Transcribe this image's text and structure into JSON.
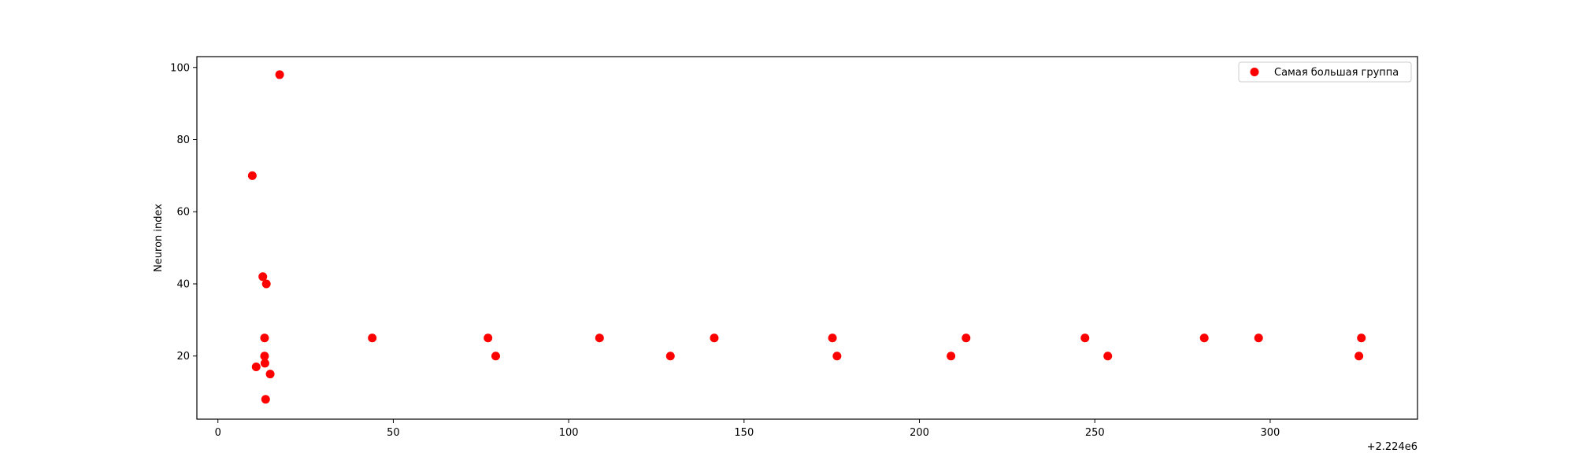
{
  "chart_data": {
    "type": "scatter",
    "title": "",
    "xlabel": "",
    "ylabel": "Neuron index",
    "x_offset_label": "+2.224e6",
    "xlim": [
      -6,
      342
    ],
    "ylim": [
      2.5,
      103
    ],
    "x_ticks": [
      {
        "value": 0,
        "label": "0"
      },
      {
        "value": 50,
        "label": "50"
      },
      {
        "value": 100,
        "label": "100"
      },
      {
        "value": 150,
        "label": "150"
      },
      {
        "value": 200,
        "label": "200"
      },
      {
        "value": 250,
        "label": "250"
      },
      {
        "value": 300,
        "label": "300"
      }
    ],
    "y_ticks": [
      {
        "value": 20,
        "label": "20"
      },
      {
        "value": 40,
        "label": "40"
      },
      {
        "value": 60,
        "label": "60"
      },
      {
        "value": 80,
        "label": "80"
      },
      {
        "value": 100,
        "label": "100"
      }
    ],
    "grid": false,
    "legend": {
      "position": "top-right"
    },
    "series": [
      {
        "name": "Самая большая группа",
        "color": "#ff0000",
        "points": [
          {
            "x": 9.8,
            "y": 70
          },
          {
            "x": 10.9,
            "y": 17
          },
          {
            "x": 12.8,
            "y": 42
          },
          {
            "x": 13.3,
            "y": 25
          },
          {
            "x": 13.3,
            "y": 20
          },
          {
            "x": 13.4,
            "y": 18
          },
          {
            "x": 13.6,
            "y": 8
          },
          {
            "x": 13.8,
            "y": 40
          },
          {
            "x": 14.9,
            "y": 15
          },
          {
            "x": 17.6,
            "y": 98
          },
          {
            "x": 44.0,
            "y": 25
          },
          {
            "x": 77.0,
            "y": 25
          },
          {
            "x": 79.2,
            "y": 20
          },
          {
            "x": 108.8,
            "y": 25
          },
          {
            "x": 129.0,
            "y": 20
          },
          {
            "x": 141.5,
            "y": 25
          },
          {
            "x": 175.2,
            "y": 25
          },
          {
            "x": 176.5,
            "y": 20
          },
          {
            "x": 209.0,
            "y": 20
          },
          {
            "x": 213.3,
            "y": 25
          },
          {
            "x": 247.2,
            "y": 25
          },
          {
            "x": 253.7,
            "y": 20
          },
          {
            "x": 281.2,
            "y": 25
          },
          {
            "x": 296.7,
            "y": 25
          },
          {
            "x": 325.3,
            "y": 20
          },
          {
            "x": 326.0,
            "y": 25
          }
        ]
      }
    ]
  }
}
